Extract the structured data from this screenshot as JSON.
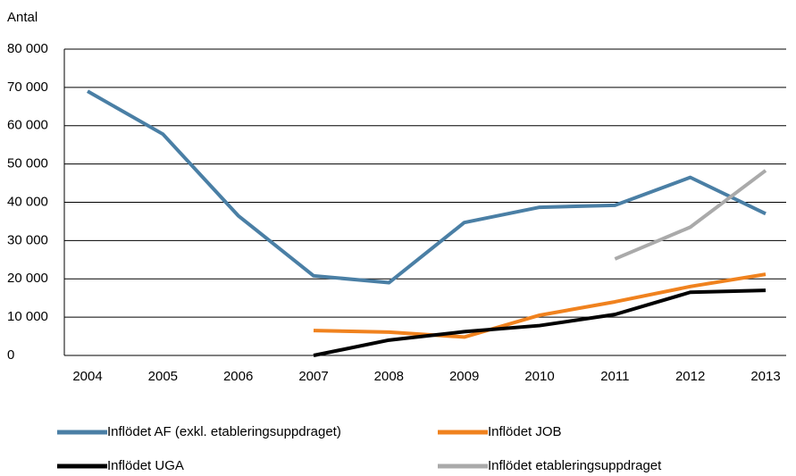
{
  "chart_data": {
    "type": "line",
    "y_axis_label": "Antal",
    "categories": [
      "2004",
      "2005",
      "2006",
      "2007",
      "2008",
      "2009",
      "2010",
      "2011",
      "2012",
      "2013"
    ],
    "series": [
      {
        "name": "Inflödet AF (exkl. etableringsuppdraget)",
        "color": "#4a7fa5",
        "values": [
          69000,
          57800,
          36500,
          20800,
          19000,
          34700,
          38700,
          39200,
          46500,
          37000
        ]
      },
      {
        "name": "Inflödet JOB",
        "color": "#f0821e",
        "values": [
          null,
          null,
          null,
          6500,
          6100,
          4800,
          10500,
          14000,
          18000,
          21200
        ]
      },
      {
        "name": "Inflödet UGA",
        "color": "#000000",
        "values": [
          null,
          null,
          null,
          0,
          4000,
          6200,
          7800,
          10700,
          16500,
          17000
        ]
      },
      {
        "name": "Inflödet etableringsuppdraget",
        "color": "#aaaaaa",
        "values": [
          null,
          null,
          null,
          null,
          null,
          null,
          null,
          25200,
          33500,
          48300
        ]
      }
    ],
    "ylim": [
      0,
      80000
    ],
    "yticks": [
      0,
      {
        "value": 10000,
        "label": "10 000"
      },
      {
        "value": 20000,
        "label": "20 000"
      },
      {
        "value": 30000,
        "label": "30 000"
      },
      {
        "value": 40000,
        "label": "40 000"
      },
      {
        "value": 50000,
        "label": "50 000"
      },
      {
        "value": 60000,
        "label": "60 000"
      },
      {
        "value": 70000,
        "label": "70 000"
      },
      {
        "value": 80000,
        "label": "80 000"
      }
    ],
    "grid": true
  }
}
